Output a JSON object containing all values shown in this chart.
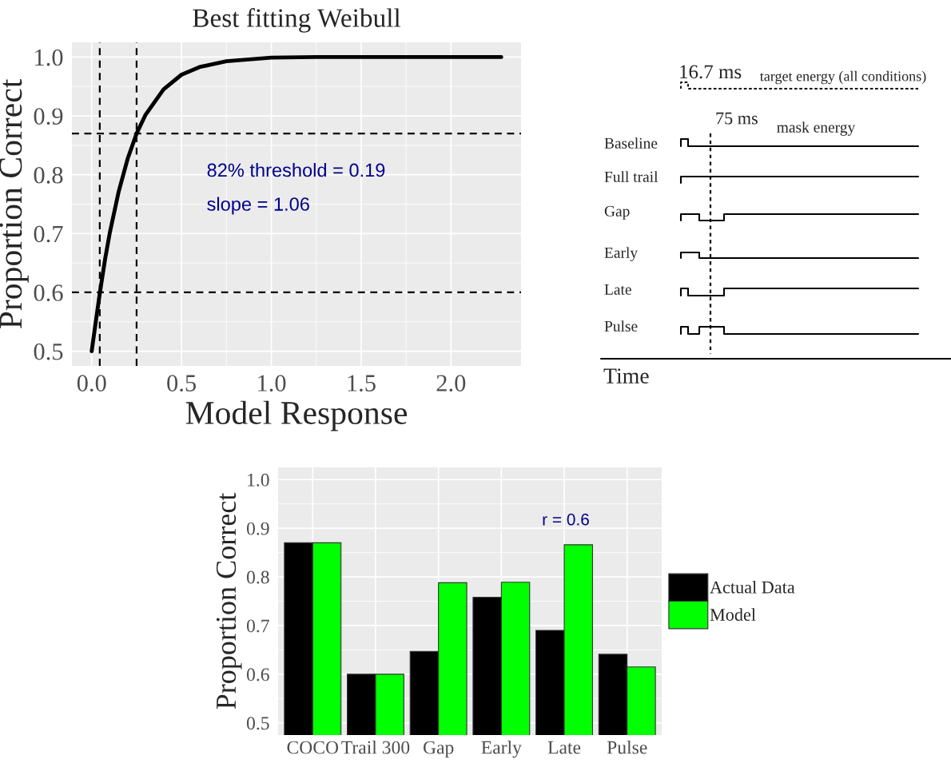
{
  "chart_data": [
    {
      "type": "line",
      "title": "Best fitting Weibull",
      "xlabel": "Model Response",
      "ylabel": "Proportion Correct",
      "x": [
        0,
        0.02,
        0.045,
        0.075,
        0.1,
        0.15,
        0.2,
        0.25,
        0.3,
        0.4,
        0.5,
        0.6,
        0.75,
        1.0,
        1.25,
        1.5,
        2.0,
        2.28
      ],
      "series": [
        {
          "color": "#000000",
          "values": [
            0.5,
            0.544,
            0.598,
            0.657,
            0.7,
            0.771,
            0.827,
            0.87,
            0.902,
            0.945,
            0.97,
            0.983,
            0.993,
            0.999,
            1.0,
            1.0,
            1.0,
            1.0
          ]
        }
      ],
      "xlim": [
        -0.11,
        2.39
      ],
      "ylim": [
        0.475,
        1.025
      ],
      "xticks": [
        {
          "value": 0,
          "label": "0.0"
        },
        {
          "value": 0.5,
          "label": "0.5"
        },
        {
          "value": 1,
          "label": "1.0"
        },
        {
          "value": 1.5,
          "label": "1.5"
        },
        {
          "value": 2,
          "label": "2.0"
        }
      ],
      "yticks": [
        {
          "value": 0.5,
          "label": "0.5"
        },
        {
          "value": 0.6,
          "label": "0.6"
        },
        {
          "value": 0.7,
          "label": "0.7"
        },
        {
          "value": 0.8,
          "label": "0.8"
        },
        {
          "value": 0.9,
          "label": "0.9"
        },
        {
          "value": 1.0,
          "label": "1.0"
        }
      ],
      "grid": true,
      "marker": "none",
      "line_style": "solid",
      "ref_lines": [
        {
          "axis": "x",
          "value": 0.045,
          "color": "#000000",
          "line_style": "dashed"
        },
        {
          "axis": "x",
          "value": 0.25,
          "color": "#000000",
          "line_style": "dashed"
        },
        {
          "axis": "y",
          "value": 0.87,
          "color": "#000000",
          "line_style": "dashed"
        },
        {
          "axis": "y",
          "value": 0.6,
          "color": "#000000",
          "line_style": "dashed"
        }
      ],
      "annotations": [
        "82% threshold = 0.19",
        "slope = 1.06"
      ]
    },
    {
      "type": "other",
      "xlabel": "Time",
      "categories": [
        "Baseline",
        "Full trail",
        "Gap",
        "Early",
        "Late",
        "Pulse"
      ],
      "annotations": [
        "16.7 ms",
        "target energy (all conditions)",
        "75 ms",
        "mask energy"
      ]
    },
    {
      "type": "bar",
      "ylabel": "Proportion Correct",
      "categories": [
        "COCO",
        "Trail 300",
        "Gap",
        "Early",
        "Late",
        "Pulse"
      ],
      "series": [
        {
          "name": "Actual Data",
          "color": "#000000",
          "values": [
            0.87,
            0.6,
            0.647,
            0.758,
            0.69,
            0.641
          ]
        },
        {
          "name": "Model",
          "color": "#00ff00",
          "values": [
            0.87,
            0.6,
            0.788,
            0.789,
            0.866,
            0.615
          ]
        }
      ],
      "ylim": [
        0.475,
        1.025
      ],
      "yticks": [
        {
          "value": 0.5,
          "label": "0.5"
        },
        {
          "value": 0.6,
          "label": "0.6"
        },
        {
          "value": 0.7,
          "label": "0.7"
        },
        {
          "value": 0.8,
          "label": "0.8"
        },
        {
          "value": 0.9,
          "label": "0.9"
        },
        {
          "value": 1.0,
          "label": "1.0"
        }
      ],
      "grid": true,
      "legend": "right",
      "annotations": [
        "r = 0.6"
      ]
    }
  ]
}
